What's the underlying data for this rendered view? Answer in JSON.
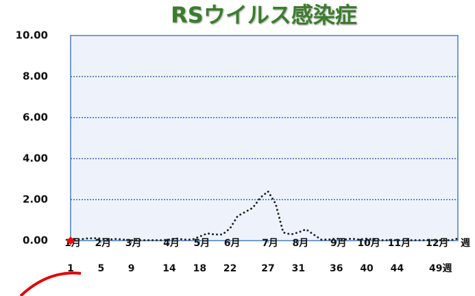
{
  "chart_data": {
    "type": "line",
    "title": "RSウイルス感染症",
    "x": [
      1,
      2,
      3,
      4,
      5,
      6,
      7,
      8,
      9,
      10,
      11,
      12,
      13,
      14,
      15,
      16,
      17,
      18,
      19,
      20,
      21,
      22,
      23,
      24,
      25,
      26,
      27,
      28,
      29,
      30,
      31,
      32,
      33,
      34,
      35,
      36,
      37,
      38,
      39,
      40,
      41,
      42,
      43,
      44,
      45,
      46,
      47,
      48,
      49,
      50,
      51,
      52
    ],
    "series": [
      {
        "color": "#222222",
        "line_style": "dotted",
        "values": [
          0.02,
          0.05,
          0.1,
          0.12,
          0.1,
          0.05,
          0.08,
          0.05,
          0.02,
          0.02,
          0.02,
          0.02,
          0.02,
          0.05,
          0.1,
          0.05,
          0.05,
          0.2,
          0.35,
          0.3,
          0.3,
          0.6,
          1.2,
          1.4,
          1.6,
          2.1,
          2.4,
          1.8,
          0.4,
          0.3,
          0.4,
          0.55,
          0.3,
          0.05,
          0.05,
          0.1,
          0.05,
          0.1,
          0.05,
          0.1,
          0.05,
          0.02,
          0.02,
          0.02,
          0.02,
          0.02,
          0.02,
          0.02,
          0.02,
          0.02,
          0.02,
          0.1
        ]
      },
      {
        "color": "#ff0000",
        "marker": "diamond",
        "values": [
          0,
          null,
          null,
          null,
          null,
          null,
          null,
          null,
          null,
          null,
          null,
          null,
          null,
          null,
          null,
          null,
          null,
          null,
          null,
          null,
          null,
          null,
          null,
          null,
          null,
          null,
          null,
          null,
          null,
          null,
          null,
          null,
          null,
          null,
          null,
          null,
          null,
          null,
          null,
          null,
          null,
          null,
          null,
          null,
          null,
          null,
          null,
          null,
          null,
          null,
          null,
          null
        ]
      }
    ],
    "xlim": [
      1,
      52
    ],
    "xticks": [
      {
        "value": 1,
        "label": "1"
      },
      {
        "value": 5,
        "label": "5"
      },
      {
        "value": 9,
        "label": "9"
      },
      {
        "value": 14,
        "label": "14"
      },
      {
        "value": 18,
        "label": "18"
      },
      {
        "value": 22,
        "label": "22"
      },
      {
        "value": 27,
        "label": "27"
      },
      {
        "value": 31,
        "label": "31"
      },
      {
        "value": 36,
        "label": "36"
      },
      {
        "value": 40,
        "label": "40"
      },
      {
        "value": 44,
        "label": "44"
      },
      {
        "value": 49,
        "label": "49週"
      }
    ],
    "month_labels": [
      "1月",
      "2月",
      "3月",
      "4月",
      "5月",
      "6月",
      "7月",
      "8月",
      "9月",
      "10月",
      "11月",
      "12月"
    ],
    "x_axis_label": "週",
    "ylim": [
      0,
      10
    ],
    "yticks": [
      {
        "value": 0,
        "label": "0.00"
      },
      {
        "value": 2,
        "label": "2.00"
      },
      {
        "value": 4,
        "label": "4.00"
      },
      {
        "value": 6,
        "label": "6.00"
      },
      {
        "value": 8,
        "label": "8.00"
      },
      {
        "value": 10,
        "label": "10.00"
      }
    ],
    "grid": true
  }
}
